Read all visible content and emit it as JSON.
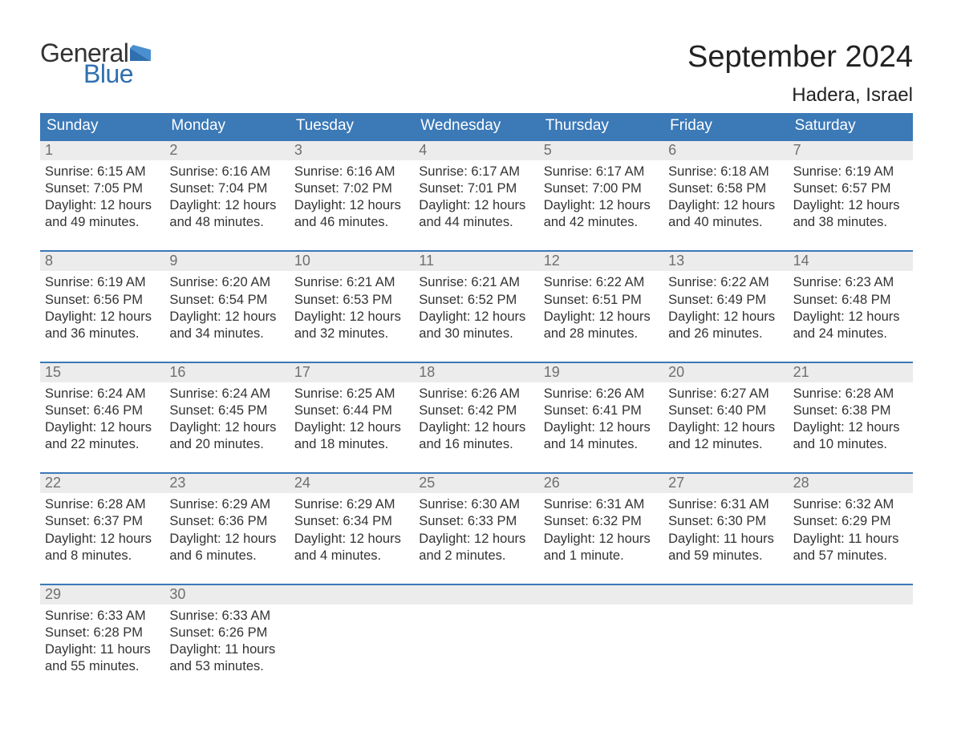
{
  "logo": {
    "general": "General",
    "blue": "Blue"
  },
  "title": "September 2024",
  "location": "Hadera, Israel",
  "colors": {
    "header_bg": "#3b79b7",
    "header_text": "#ffffff",
    "daynum_bg": "#ececec",
    "daynum_text": "#6f6f6f",
    "body_text": "#333333",
    "logo_blue": "#2f6fb0",
    "week_border": "#3b79b7"
  },
  "weekdays": [
    "Sunday",
    "Monday",
    "Tuesday",
    "Wednesday",
    "Thursday",
    "Friday",
    "Saturday"
  ],
  "weeks": [
    [
      {
        "n": "1",
        "sunrise": "Sunrise: 6:15 AM",
        "sunset": "Sunset: 7:05 PM",
        "d1": "Daylight: 12 hours",
        "d2": "and 49 minutes."
      },
      {
        "n": "2",
        "sunrise": "Sunrise: 6:16 AM",
        "sunset": "Sunset: 7:04 PM",
        "d1": "Daylight: 12 hours",
        "d2": "and 48 minutes."
      },
      {
        "n": "3",
        "sunrise": "Sunrise: 6:16 AM",
        "sunset": "Sunset: 7:02 PM",
        "d1": "Daylight: 12 hours",
        "d2": "and 46 minutes."
      },
      {
        "n": "4",
        "sunrise": "Sunrise: 6:17 AM",
        "sunset": "Sunset: 7:01 PM",
        "d1": "Daylight: 12 hours",
        "d2": "and 44 minutes."
      },
      {
        "n": "5",
        "sunrise": "Sunrise: 6:17 AM",
        "sunset": "Sunset: 7:00 PM",
        "d1": "Daylight: 12 hours",
        "d2": "and 42 minutes."
      },
      {
        "n": "6",
        "sunrise": "Sunrise: 6:18 AM",
        "sunset": "Sunset: 6:58 PM",
        "d1": "Daylight: 12 hours",
        "d2": "and 40 minutes."
      },
      {
        "n": "7",
        "sunrise": "Sunrise: 6:19 AM",
        "sunset": "Sunset: 6:57 PM",
        "d1": "Daylight: 12 hours",
        "d2": "and 38 minutes."
      }
    ],
    [
      {
        "n": "8",
        "sunrise": "Sunrise: 6:19 AM",
        "sunset": "Sunset: 6:56 PM",
        "d1": "Daylight: 12 hours",
        "d2": "and 36 minutes."
      },
      {
        "n": "9",
        "sunrise": "Sunrise: 6:20 AM",
        "sunset": "Sunset: 6:54 PM",
        "d1": "Daylight: 12 hours",
        "d2": "and 34 minutes."
      },
      {
        "n": "10",
        "sunrise": "Sunrise: 6:21 AM",
        "sunset": "Sunset: 6:53 PM",
        "d1": "Daylight: 12 hours",
        "d2": "and 32 minutes."
      },
      {
        "n": "11",
        "sunrise": "Sunrise: 6:21 AM",
        "sunset": "Sunset: 6:52 PM",
        "d1": "Daylight: 12 hours",
        "d2": "and 30 minutes."
      },
      {
        "n": "12",
        "sunrise": "Sunrise: 6:22 AM",
        "sunset": "Sunset: 6:51 PM",
        "d1": "Daylight: 12 hours",
        "d2": "and 28 minutes."
      },
      {
        "n": "13",
        "sunrise": "Sunrise: 6:22 AM",
        "sunset": "Sunset: 6:49 PM",
        "d1": "Daylight: 12 hours",
        "d2": "and 26 minutes."
      },
      {
        "n": "14",
        "sunrise": "Sunrise: 6:23 AM",
        "sunset": "Sunset: 6:48 PM",
        "d1": "Daylight: 12 hours",
        "d2": "and 24 minutes."
      }
    ],
    [
      {
        "n": "15",
        "sunrise": "Sunrise: 6:24 AM",
        "sunset": "Sunset: 6:46 PM",
        "d1": "Daylight: 12 hours",
        "d2": "and 22 minutes."
      },
      {
        "n": "16",
        "sunrise": "Sunrise: 6:24 AM",
        "sunset": "Sunset: 6:45 PM",
        "d1": "Daylight: 12 hours",
        "d2": "and 20 minutes."
      },
      {
        "n": "17",
        "sunrise": "Sunrise: 6:25 AM",
        "sunset": "Sunset: 6:44 PM",
        "d1": "Daylight: 12 hours",
        "d2": "and 18 minutes."
      },
      {
        "n": "18",
        "sunrise": "Sunrise: 6:26 AM",
        "sunset": "Sunset: 6:42 PM",
        "d1": "Daylight: 12 hours",
        "d2": "and 16 minutes."
      },
      {
        "n": "19",
        "sunrise": "Sunrise: 6:26 AM",
        "sunset": "Sunset: 6:41 PM",
        "d1": "Daylight: 12 hours",
        "d2": "and 14 minutes."
      },
      {
        "n": "20",
        "sunrise": "Sunrise: 6:27 AM",
        "sunset": "Sunset: 6:40 PM",
        "d1": "Daylight: 12 hours",
        "d2": "and 12 minutes."
      },
      {
        "n": "21",
        "sunrise": "Sunrise: 6:28 AM",
        "sunset": "Sunset: 6:38 PM",
        "d1": "Daylight: 12 hours",
        "d2": "and 10 minutes."
      }
    ],
    [
      {
        "n": "22",
        "sunrise": "Sunrise: 6:28 AM",
        "sunset": "Sunset: 6:37 PM",
        "d1": "Daylight: 12 hours",
        "d2": "and 8 minutes."
      },
      {
        "n": "23",
        "sunrise": "Sunrise: 6:29 AM",
        "sunset": "Sunset: 6:36 PM",
        "d1": "Daylight: 12 hours",
        "d2": "and 6 minutes."
      },
      {
        "n": "24",
        "sunrise": "Sunrise: 6:29 AM",
        "sunset": "Sunset: 6:34 PM",
        "d1": "Daylight: 12 hours",
        "d2": "and 4 minutes."
      },
      {
        "n": "25",
        "sunrise": "Sunrise: 6:30 AM",
        "sunset": "Sunset: 6:33 PM",
        "d1": "Daylight: 12 hours",
        "d2": "and 2 minutes."
      },
      {
        "n": "26",
        "sunrise": "Sunrise: 6:31 AM",
        "sunset": "Sunset: 6:32 PM",
        "d1": "Daylight: 12 hours",
        "d2": "and 1 minute."
      },
      {
        "n": "27",
        "sunrise": "Sunrise: 6:31 AM",
        "sunset": "Sunset: 6:30 PM",
        "d1": "Daylight: 11 hours",
        "d2": "and 59 minutes."
      },
      {
        "n": "28",
        "sunrise": "Sunrise: 6:32 AM",
        "sunset": "Sunset: 6:29 PM",
        "d1": "Daylight: 11 hours",
        "d2": "and 57 minutes."
      }
    ],
    [
      {
        "n": "29",
        "sunrise": "Sunrise: 6:33 AM",
        "sunset": "Sunset: 6:28 PM",
        "d1": "Daylight: 11 hours",
        "d2": "and 55 minutes."
      },
      {
        "n": "30",
        "sunrise": "Sunrise: 6:33 AM",
        "sunset": "Sunset: 6:26 PM",
        "d1": "Daylight: 11 hours",
        "d2": "and 53 minutes."
      },
      null,
      null,
      null,
      null,
      null
    ]
  ]
}
